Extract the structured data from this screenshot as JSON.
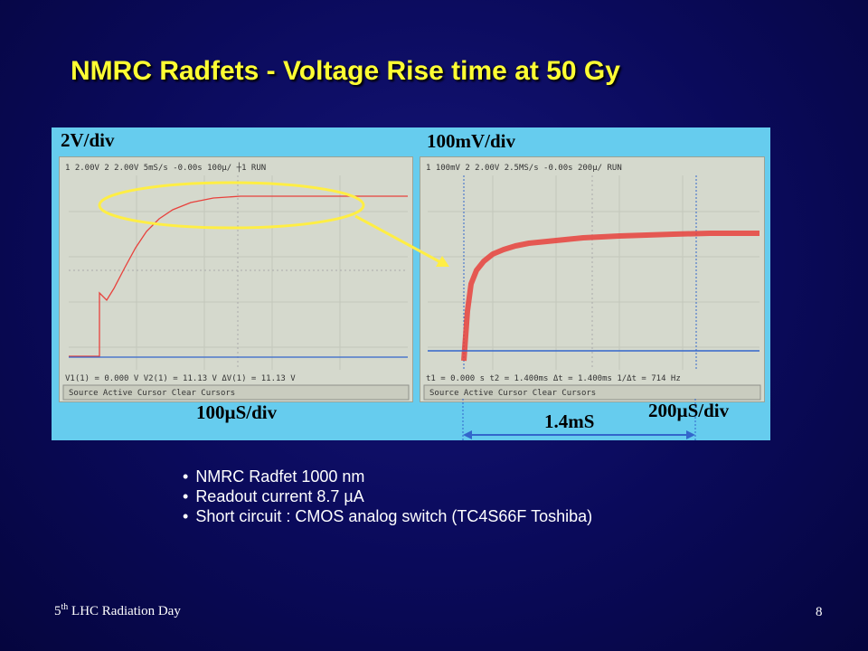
{
  "slide": {
    "title": "NMRC Radfets - Voltage Rise time at 50 Gy",
    "page_number": "8",
    "footer": {
      "superscript": "th",
      "prefix": "5",
      "text": " LHC Radiation Day"
    }
  },
  "figure": {
    "left_scope": {
      "vertical_scale": "2V/div",
      "horizontal_scale": "100µS/div",
      "header": "1  2.00V   2  2.00V   5mS/s  -0.00s  100µ/   ┼1  RUN",
      "cursor_readout": "V1(1) = 0.000 V    V2(1) = 11.13 V    ΔV(1) = 11.13 V",
      "softkeys": "Source   Active Cursor   Clear Cursors"
    },
    "right_scope": {
      "vertical_scale": "100mV/div",
      "horizontal_scale": "200µS/div",
      "header": "1  100mV  2  2.00V   2.5MS/s  -0.00s  200µ/   RUN",
      "cursor_readout": "t1 = 0.000 s   t2 = 1.400ms   Δt = 1.400ms   1/Δt = 714 Hz",
      "softkeys": "Source   Active Cursor   Clear Cursors"
    },
    "rise_time_label": "1.4mS",
    "colors": {
      "panel": "#66ccee",
      "trace_red": "#e8413c",
      "trace_blue": "#3366cc",
      "highlight_ellipse": "#ffee44"
    }
  },
  "bullets": [
    "NMRC Radfet 1000 nm",
    "Readout current 8.7 µA",
    "Short circuit : CMOS analog switch (TC4S66F Toshiba)"
  ]
}
